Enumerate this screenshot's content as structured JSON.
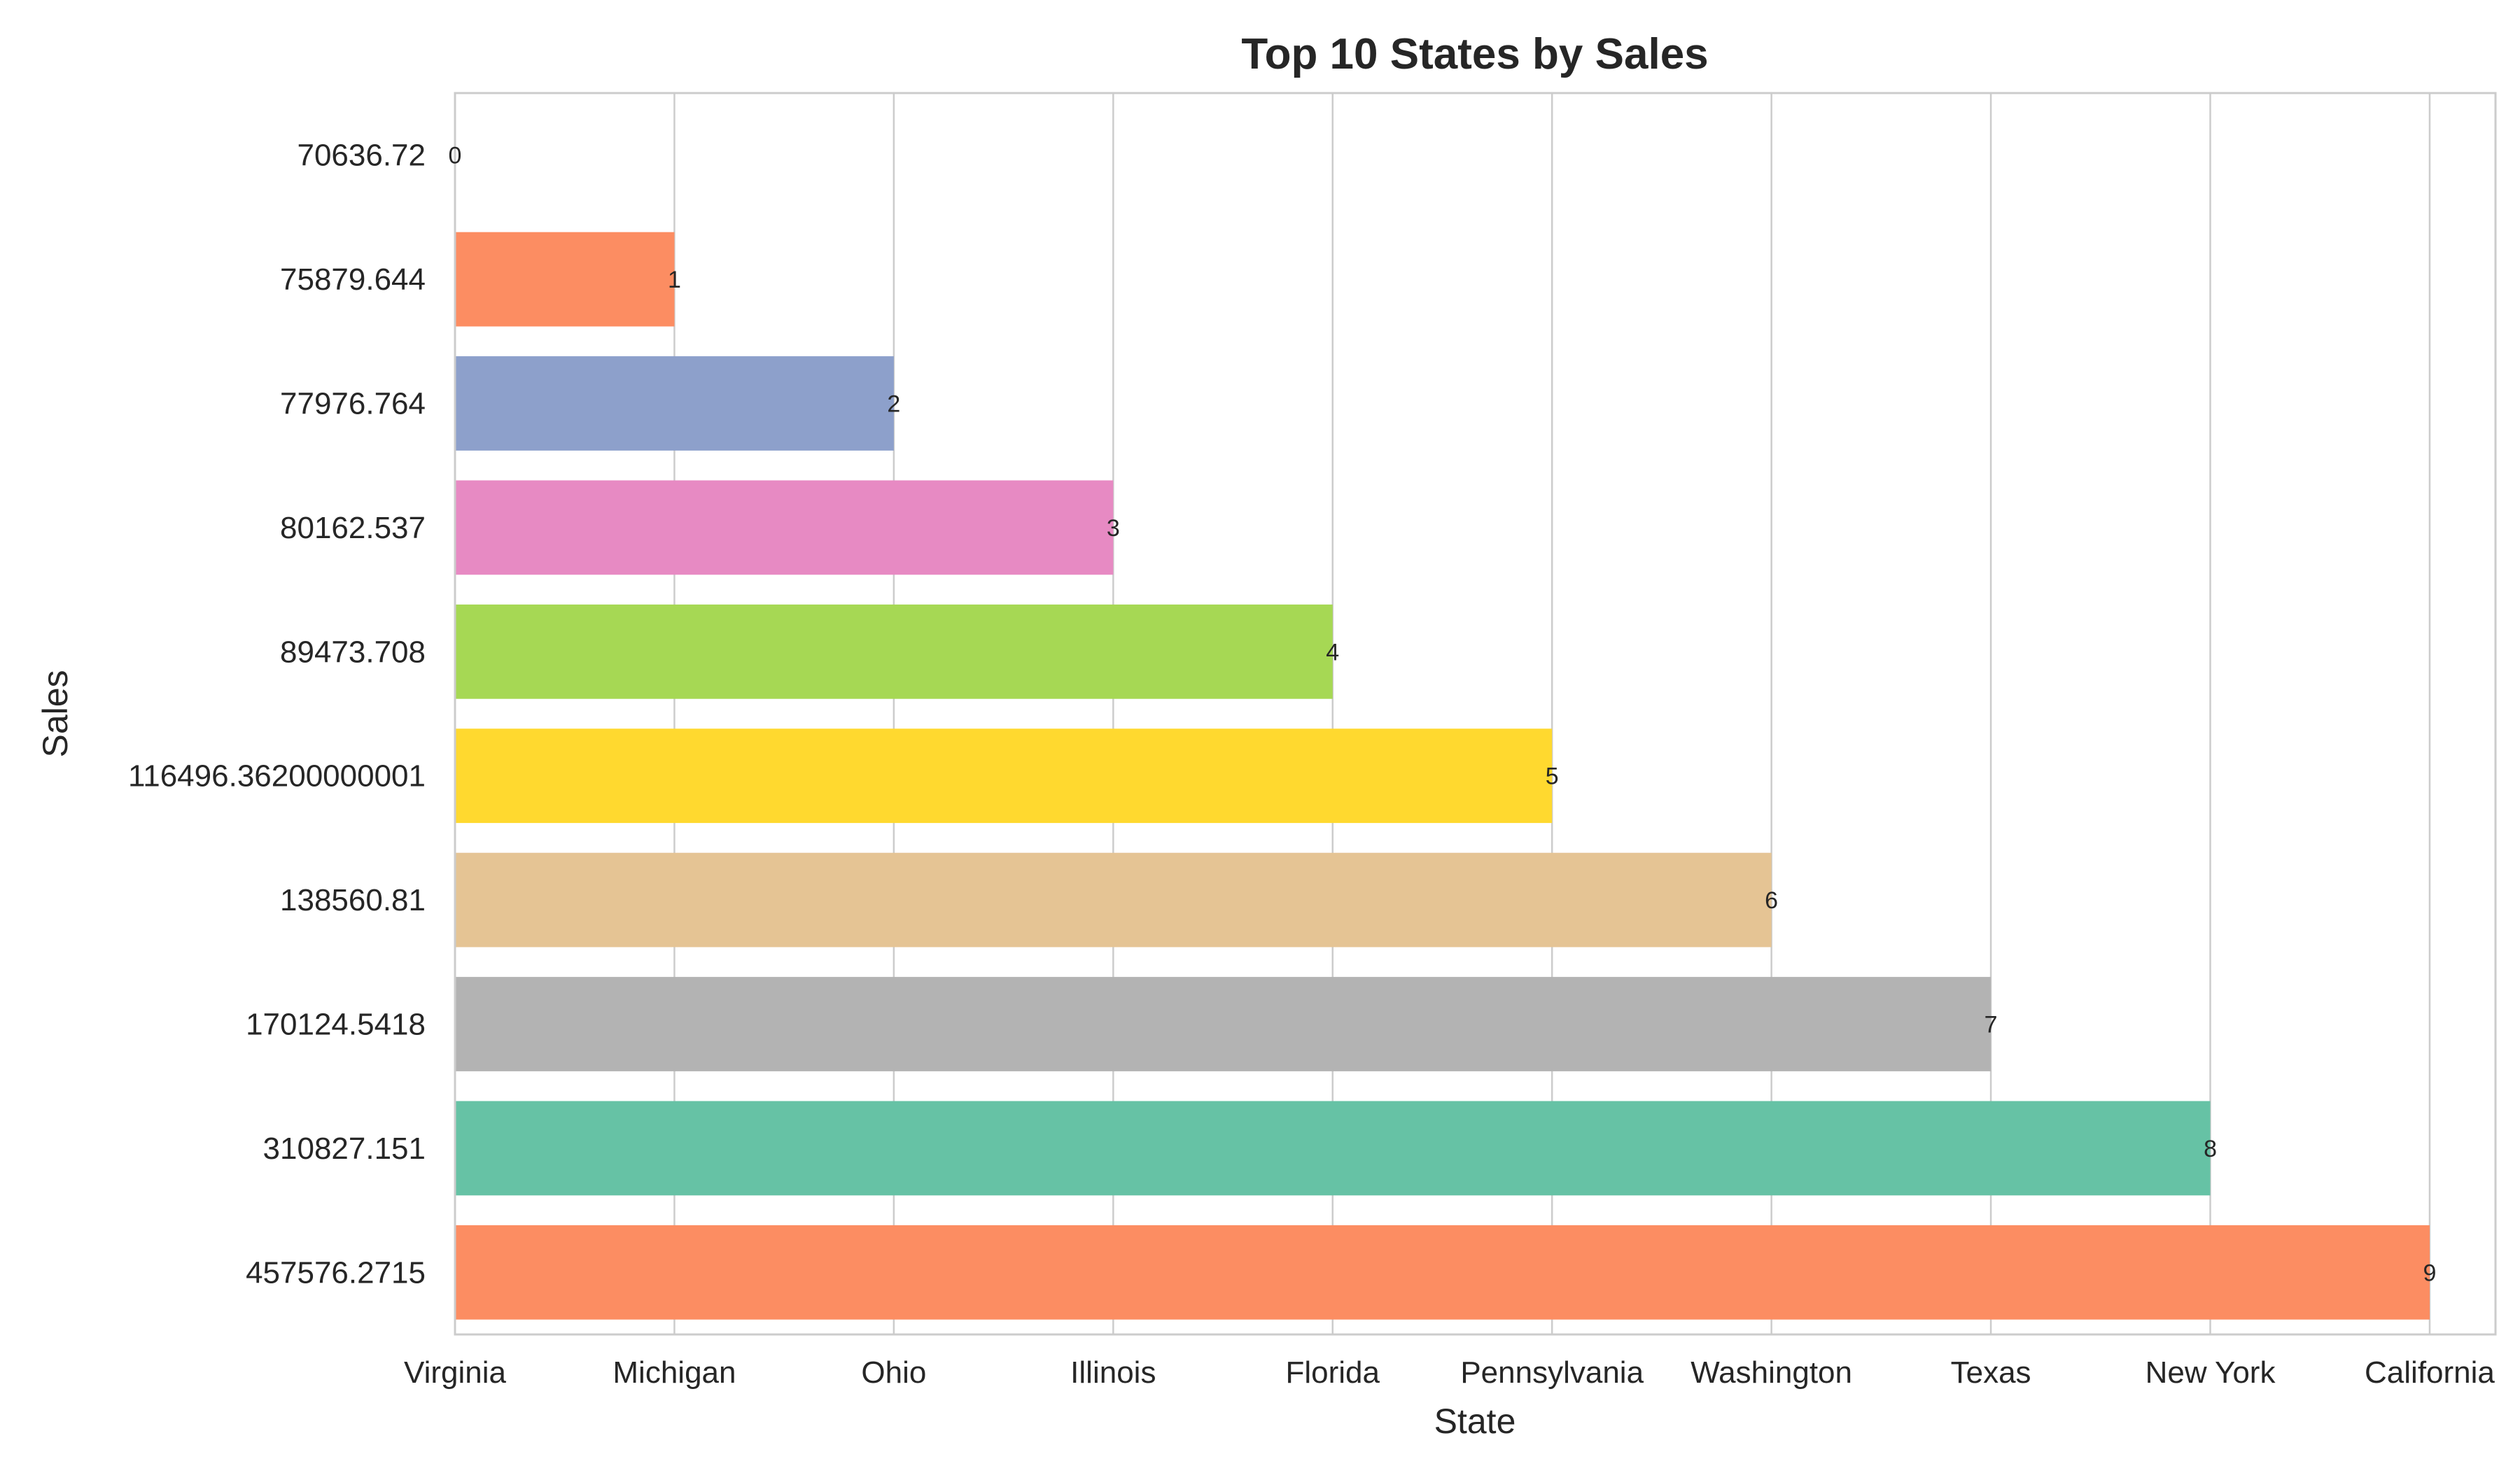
{
  "chart_data": {
    "type": "bar",
    "orientation": "horizontal",
    "title": "Top 10 States by Sales",
    "xlabel": "State",
    "ylabel": "Sales",
    "categories": [
      "Virginia",
      "Michigan",
      "Ohio",
      "Illinois",
      "Florida",
      "Pennsylvania",
      "Washington",
      "Texas",
      "New York",
      "California"
    ],
    "y_tick_labels": [
      "70636.72",
      "75879.644",
      "77976.764",
      "80162.537",
      "89473.708",
      "116496.36200000001",
      "138560.81",
      "170124.5418",
      "310827.151",
      "457576.2715"
    ],
    "values": [
      0,
      1,
      2,
      3,
      4,
      5,
      6,
      7,
      8,
      9
    ],
    "data_labels": [
      "0",
      "1",
      "2",
      "3",
      "4",
      "5",
      "6",
      "7",
      "8",
      "9"
    ],
    "xlim": [
      0,
      9
    ],
    "grid": "vertical",
    "legend": "none",
    "colors": [
      "#66c2a5",
      "#fc8d62",
      "#8da0cb",
      "#e78ac3",
      "#a6d854",
      "#ffd92f",
      "#e5c494",
      "#b3b3b3",
      "#66c2a5",
      "#fc8d62"
    ]
  }
}
